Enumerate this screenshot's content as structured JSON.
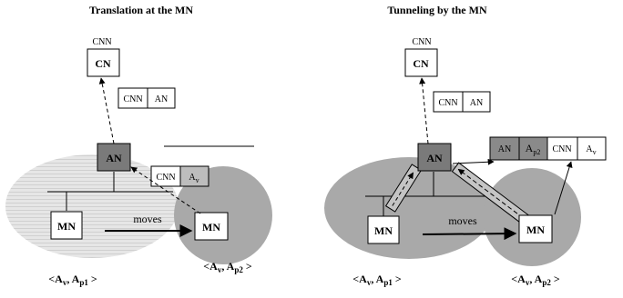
{
  "left_panel": {
    "title": "Translation at the MN",
    "cn_label": "CNN",
    "cn": "CN",
    "an": "AN",
    "mn_home": "MN",
    "mn_visited": "MN",
    "moves": "moves",
    "packet_up": [
      "CNN",
      "AN"
    ],
    "packet_down": {
      "field1": "CNN",
      "field2_base": "A",
      "field2_sub": "v"
    },
    "caption_home": {
      "open": "<",
      "a1": "A",
      "s1": "v",
      "sep": ", ",
      "a2": "A",
      "s2": "p1",
      "close": " >"
    },
    "caption_visited": {
      "open": "<",
      "a1": "A",
      "s1": "v",
      "sep": ", ",
      "a2": "A",
      "s2": "p2",
      "close": " >"
    }
  },
  "right_panel": {
    "title": "Tunneling by the MN",
    "cn_label": "CNN",
    "cn": "CN",
    "an": "AN",
    "mn_home": "MN",
    "mn_visited": "MN",
    "moves": "moves",
    "packet_up": [
      "CNN",
      "AN"
    ],
    "packet_tunnel": {
      "f1": "AN",
      "f2_base": "A",
      "f2_sub": "p2",
      "f3": "CNN",
      "f4_base": "A",
      "f4_sub": "v"
    },
    "caption_home": {
      "open": "<",
      "a1": "A",
      "s1": "v",
      "sep": ", ",
      "a2": "A",
      "s2": "p1",
      "close": " >"
    },
    "caption_visited": {
      "open": "<",
      "a1": "A",
      "s1": "v",
      "sep": ", ",
      "a2": "A",
      "s2": "p2",
      "close": " >"
    }
  },
  "colors": {
    "an_fill": "#7a7a7a",
    "tunnel_header_fill": "#8a8a8a",
    "cell_fill_gray": "#bdbdbd",
    "network_gray": "#a9a9a9",
    "network_light": "#e6e6e6",
    "network_stripe": "#d2d2d2"
  }
}
